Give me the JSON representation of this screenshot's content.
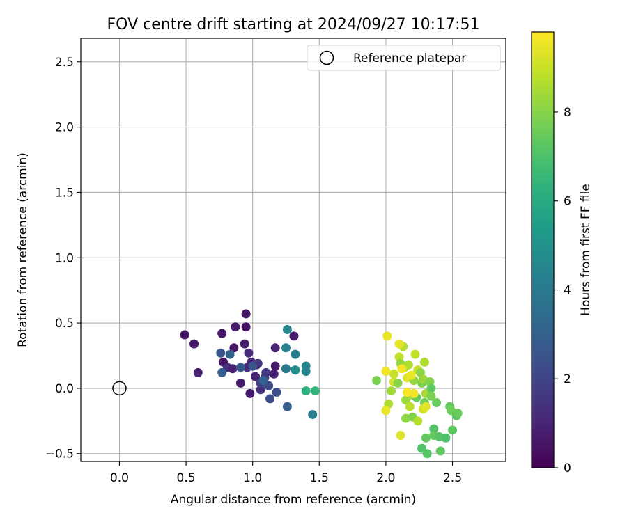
{
  "chart_data": {
    "type": "scatter",
    "title": "FOV centre drift starting at 2024/09/27 10:17:51",
    "xlabel": "Angular distance from reference (arcmin)",
    "ylabel": "Rotation from reference (arcmin)",
    "xlim": [
      -0.29,
      2.9
    ],
    "ylim": [
      -0.56,
      2.68
    ],
    "xticks": [
      0.0,
      0.5,
      1.0,
      1.5,
      2.0,
      2.5
    ],
    "yticks": [
      -0.5,
      0.0,
      0.5,
      1.0,
      1.5,
      2.0,
      2.5
    ],
    "xtick_labels": [
      "0.0",
      "0.5",
      "1.0",
      "1.5",
      "2.0",
      "2.5"
    ],
    "ytick_labels": [
      "−0.5",
      "0.0",
      "0.5",
      "1.0",
      "1.5",
      "2.0",
      "2.5"
    ],
    "grid": true,
    "legend": {
      "placement": "top-right",
      "entries": [
        "Reference platepar"
      ]
    },
    "reference_point": {
      "x": 0.0,
      "y": 0.0
    },
    "colorbar": {
      "label": "Hours from first FF file",
      "colormap": "viridis",
      "range": [
        0,
        9.8
      ],
      "ticks": [
        0,
        2,
        4,
        6,
        8
      ],
      "tick_labels": [
        "0",
        "2",
        "4",
        "6",
        "8"
      ]
    },
    "points": [
      {
        "x": 0.49,
        "y": 0.41,
        "t": 0.6
      },
      {
        "x": 0.56,
        "y": 0.34,
        "t": 0.7
      },
      {
        "x": 0.59,
        "y": 0.12,
        "t": 0.9
      },
      {
        "x": 0.77,
        "y": 0.42,
        "t": 0.6
      },
      {
        "x": 0.78,
        "y": 0.2,
        "t": 0.5
      },
      {
        "x": 0.87,
        "y": 0.47,
        "t": 0.7
      },
      {
        "x": 0.95,
        "y": 0.47,
        "t": 0.5
      },
      {
        "x": 0.95,
        "y": 0.57,
        "t": 0.6
      },
      {
        "x": 0.86,
        "y": 0.31,
        "t": 0.5
      },
      {
        "x": 0.94,
        "y": 0.34,
        "t": 0.8
      },
      {
        "x": 0.97,
        "y": 0.27,
        "t": 1.2
      },
      {
        "x": 0.81,
        "y": 0.16,
        "t": 1.3
      },
      {
        "x": 0.85,
        "y": 0.15,
        "t": 0.9
      },
      {
        "x": 0.91,
        "y": 0.04,
        "t": 0.8
      },
      {
        "x": 0.98,
        "y": -0.04,
        "t": 0.7
      },
      {
        "x": 0.96,
        "y": 0.16,
        "t": 1.1
      },
      {
        "x": 0.99,
        "y": 0.2,
        "t": 1.0
      },
      {
        "x": 1.02,
        "y": 0.09,
        "t": 0.9
      },
      {
        "x": 1.03,
        "y": 0.18,
        "t": 1.4
      },
      {
        "x": 1.04,
        "y": 0.19,
        "t": 1.5
      },
      {
        "x": 1.06,
        "y": -0.01,
        "t": 1.3
      },
      {
        "x": 1.06,
        "y": 0.04,
        "t": 1.8
      },
      {
        "x": 1.09,
        "y": 0.08,
        "t": 1.7
      },
      {
        "x": 1.1,
        "y": 0.12,
        "t": 1.6
      },
      {
        "x": 1.12,
        "y": 0.02,
        "t": 2.2
      },
      {
        "x": 1.13,
        "y": -0.08,
        "t": 2.3
      },
      {
        "x": 1.16,
        "y": 0.11,
        "t": 0.9
      },
      {
        "x": 1.17,
        "y": 0.17,
        "t": 0.8
      },
      {
        "x": 1.17,
        "y": 0.31,
        "t": 1.0
      },
      {
        "x": 1.18,
        "y": -0.03,
        "t": 2.4
      },
      {
        "x": 1.31,
        "y": 0.4,
        "t": 0.7
      },
      {
        "x": 0.76,
        "y": 0.27,
        "t": 2.6
      },
      {
        "x": 0.77,
        "y": 0.12,
        "t": 3.0
      },
      {
        "x": 0.83,
        "y": 0.26,
        "t": 3.1
      },
      {
        "x": 0.91,
        "y": 0.16,
        "t": 2.8
      },
      {
        "x": 1.0,
        "y": 0.17,
        "t": 2.6
      },
      {
        "x": 1.08,
        "y": 0.06,
        "t": 3.0
      },
      {
        "x": 1.26,
        "y": -0.14,
        "t": 2.9
      },
      {
        "x": 1.25,
        "y": 0.31,
        "t": 4.3
      },
      {
        "x": 1.25,
        "y": 0.15,
        "t": 4.0
      },
      {
        "x": 1.26,
        "y": 0.45,
        "t": 4.5
      },
      {
        "x": 1.32,
        "y": 0.26,
        "t": 4.2
      },
      {
        "x": 1.32,
        "y": 0.14,
        "t": 4.7
      },
      {
        "x": 1.4,
        "y": 0.17,
        "t": 4.5
      },
      {
        "x": 1.4,
        "y": 0.13,
        "t": 4.4
      },
      {
        "x": 1.45,
        "y": -0.2,
        "t": 4.1
      },
      {
        "x": 1.4,
        "y": -0.02,
        "t": 6.2
      },
      {
        "x": 1.47,
        "y": -0.02,
        "t": 6.4
      },
      {
        "x": 1.93,
        "y": 0.06,
        "t": 7.8
      },
      {
        "x": 2.02,
        "y": -0.12,
        "t": 8.6
      },
      {
        "x": 2.04,
        "y": -0.02,
        "t": 8.4
      },
      {
        "x": 2.06,
        "y": 0.05,
        "t": 9.2
      },
      {
        "x": 2.06,
        "y": 0.11,
        "t": 9.0
      },
      {
        "x": 2.09,
        "y": 0.04,
        "t": 8.0
      },
      {
        "x": 2.1,
        "y": 0.24,
        "t": 8.9
      },
      {
        "x": 2.11,
        "y": 0.19,
        "t": 8.2
      },
      {
        "x": 2.13,
        "y": 0.32,
        "t": 8.7
      },
      {
        "x": 2.14,
        "y": 0.16,
        "t": 8.5
      },
      {
        "x": 2.15,
        "y": -0.09,
        "t": 8.3
      },
      {
        "x": 2.15,
        "y": -0.23,
        "t": 8.1
      },
      {
        "x": 2.16,
        "y": 0.08,
        "t": 9.3
      },
      {
        "x": 2.17,
        "y": 0.18,
        "t": 8.6
      },
      {
        "x": 2.18,
        "y": -0.14,
        "t": 8.8
      },
      {
        "x": 2.19,
        "y": -0.05,
        "t": 8.4
      },
      {
        "x": 2.2,
        "y": -0.22,
        "t": 7.9
      },
      {
        "x": 2.21,
        "y": 0.06,
        "t": 8.2
      },
      {
        "x": 2.22,
        "y": 0.26,
        "t": 8.9
      },
      {
        "x": 2.23,
        "y": -0.07,
        "t": 7.5
      },
      {
        "x": 2.24,
        "y": -0.25,
        "t": 8.7
      },
      {
        "x": 2.24,
        "y": 0.14,
        "t": 9.0
      },
      {
        "x": 2.26,
        "y": 0.12,
        "t": 8.1
      },
      {
        "x": 2.27,
        "y": 0.04,
        "t": 7.8
      },
      {
        "x": 2.28,
        "y": 0.07,
        "t": 8.3
      },
      {
        "x": 2.28,
        "y": -0.16,
        "t": 9.2
      },
      {
        "x": 2.29,
        "y": -0.11,
        "t": 7.6
      },
      {
        "x": 2.29,
        "y": 0.2,
        "t": 8.6
      },
      {
        "x": 2.3,
        "y": -0.04,
        "t": 8.5
      },
      {
        "x": 2.3,
        "y": -0.38,
        "t": 7.4
      },
      {
        "x": 2.31,
        "y": -0.5,
        "t": 7.2
      },
      {
        "x": 2.33,
        "y": 0.05,
        "t": 7.9
      },
      {
        "x": 2.34,
        "y": 0.0,
        "t": 7.3
      },
      {
        "x": 2.34,
        "y": -0.06,
        "t": 7.8
      },
      {
        "x": 2.36,
        "y": -0.31,
        "t": 7.1
      },
      {
        "x": 2.36,
        "y": -0.36,
        "t": 7.4
      },
      {
        "x": 2.38,
        "y": -0.11,
        "t": 7.5
      },
      {
        "x": 2.4,
        "y": -0.37,
        "t": 7.2
      },
      {
        "x": 2.41,
        "y": -0.48,
        "t": 7.3
      },
      {
        "x": 2.45,
        "y": -0.38,
        "t": 7.0
      },
      {
        "x": 2.48,
        "y": -0.14,
        "t": 7.4
      },
      {
        "x": 2.49,
        "y": -0.17,
        "t": 7.6
      },
      {
        "x": 2.5,
        "y": -0.32,
        "t": 7.3
      },
      {
        "x": 2.53,
        "y": -0.21,
        "t": 7.2
      },
      {
        "x": 2.54,
        "y": -0.19,
        "t": 7.5
      },
      {
        "x": 2.27,
        "y": -0.46,
        "t": 7.1
      },
      {
        "x": 2.01,
        "y": 0.4,
        "t": 9.5
      },
      {
        "x": 2.0,
        "y": 0.13,
        "t": 9.6
      },
      {
        "x": 2.0,
        "y": -0.17,
        "t": 9.5
      },
      {
        "x": 2.1,
        "y": 0.34,
        "t": 9.4
      },
      {
        "x": 2.11,
        "y": -0.36,
        "t": 9.3
      },
      {
        "x": 2.12,
        "y": 0.15,
        "t": 9.6
      },
      {
        "x": 2.16,
        "y": -0.03,
        "t": 9.7
      },
      {
        "x": 2.19,
        "y": 0.1,
        "t": 9.5
      },
      {
        "x": 2.21,
        "y": -0.04,
        "t": 9.6
      },
      {
        "x": 2.3,
        "y": -0.14,
        "t": 9.4
      }
    ]
  }
}
